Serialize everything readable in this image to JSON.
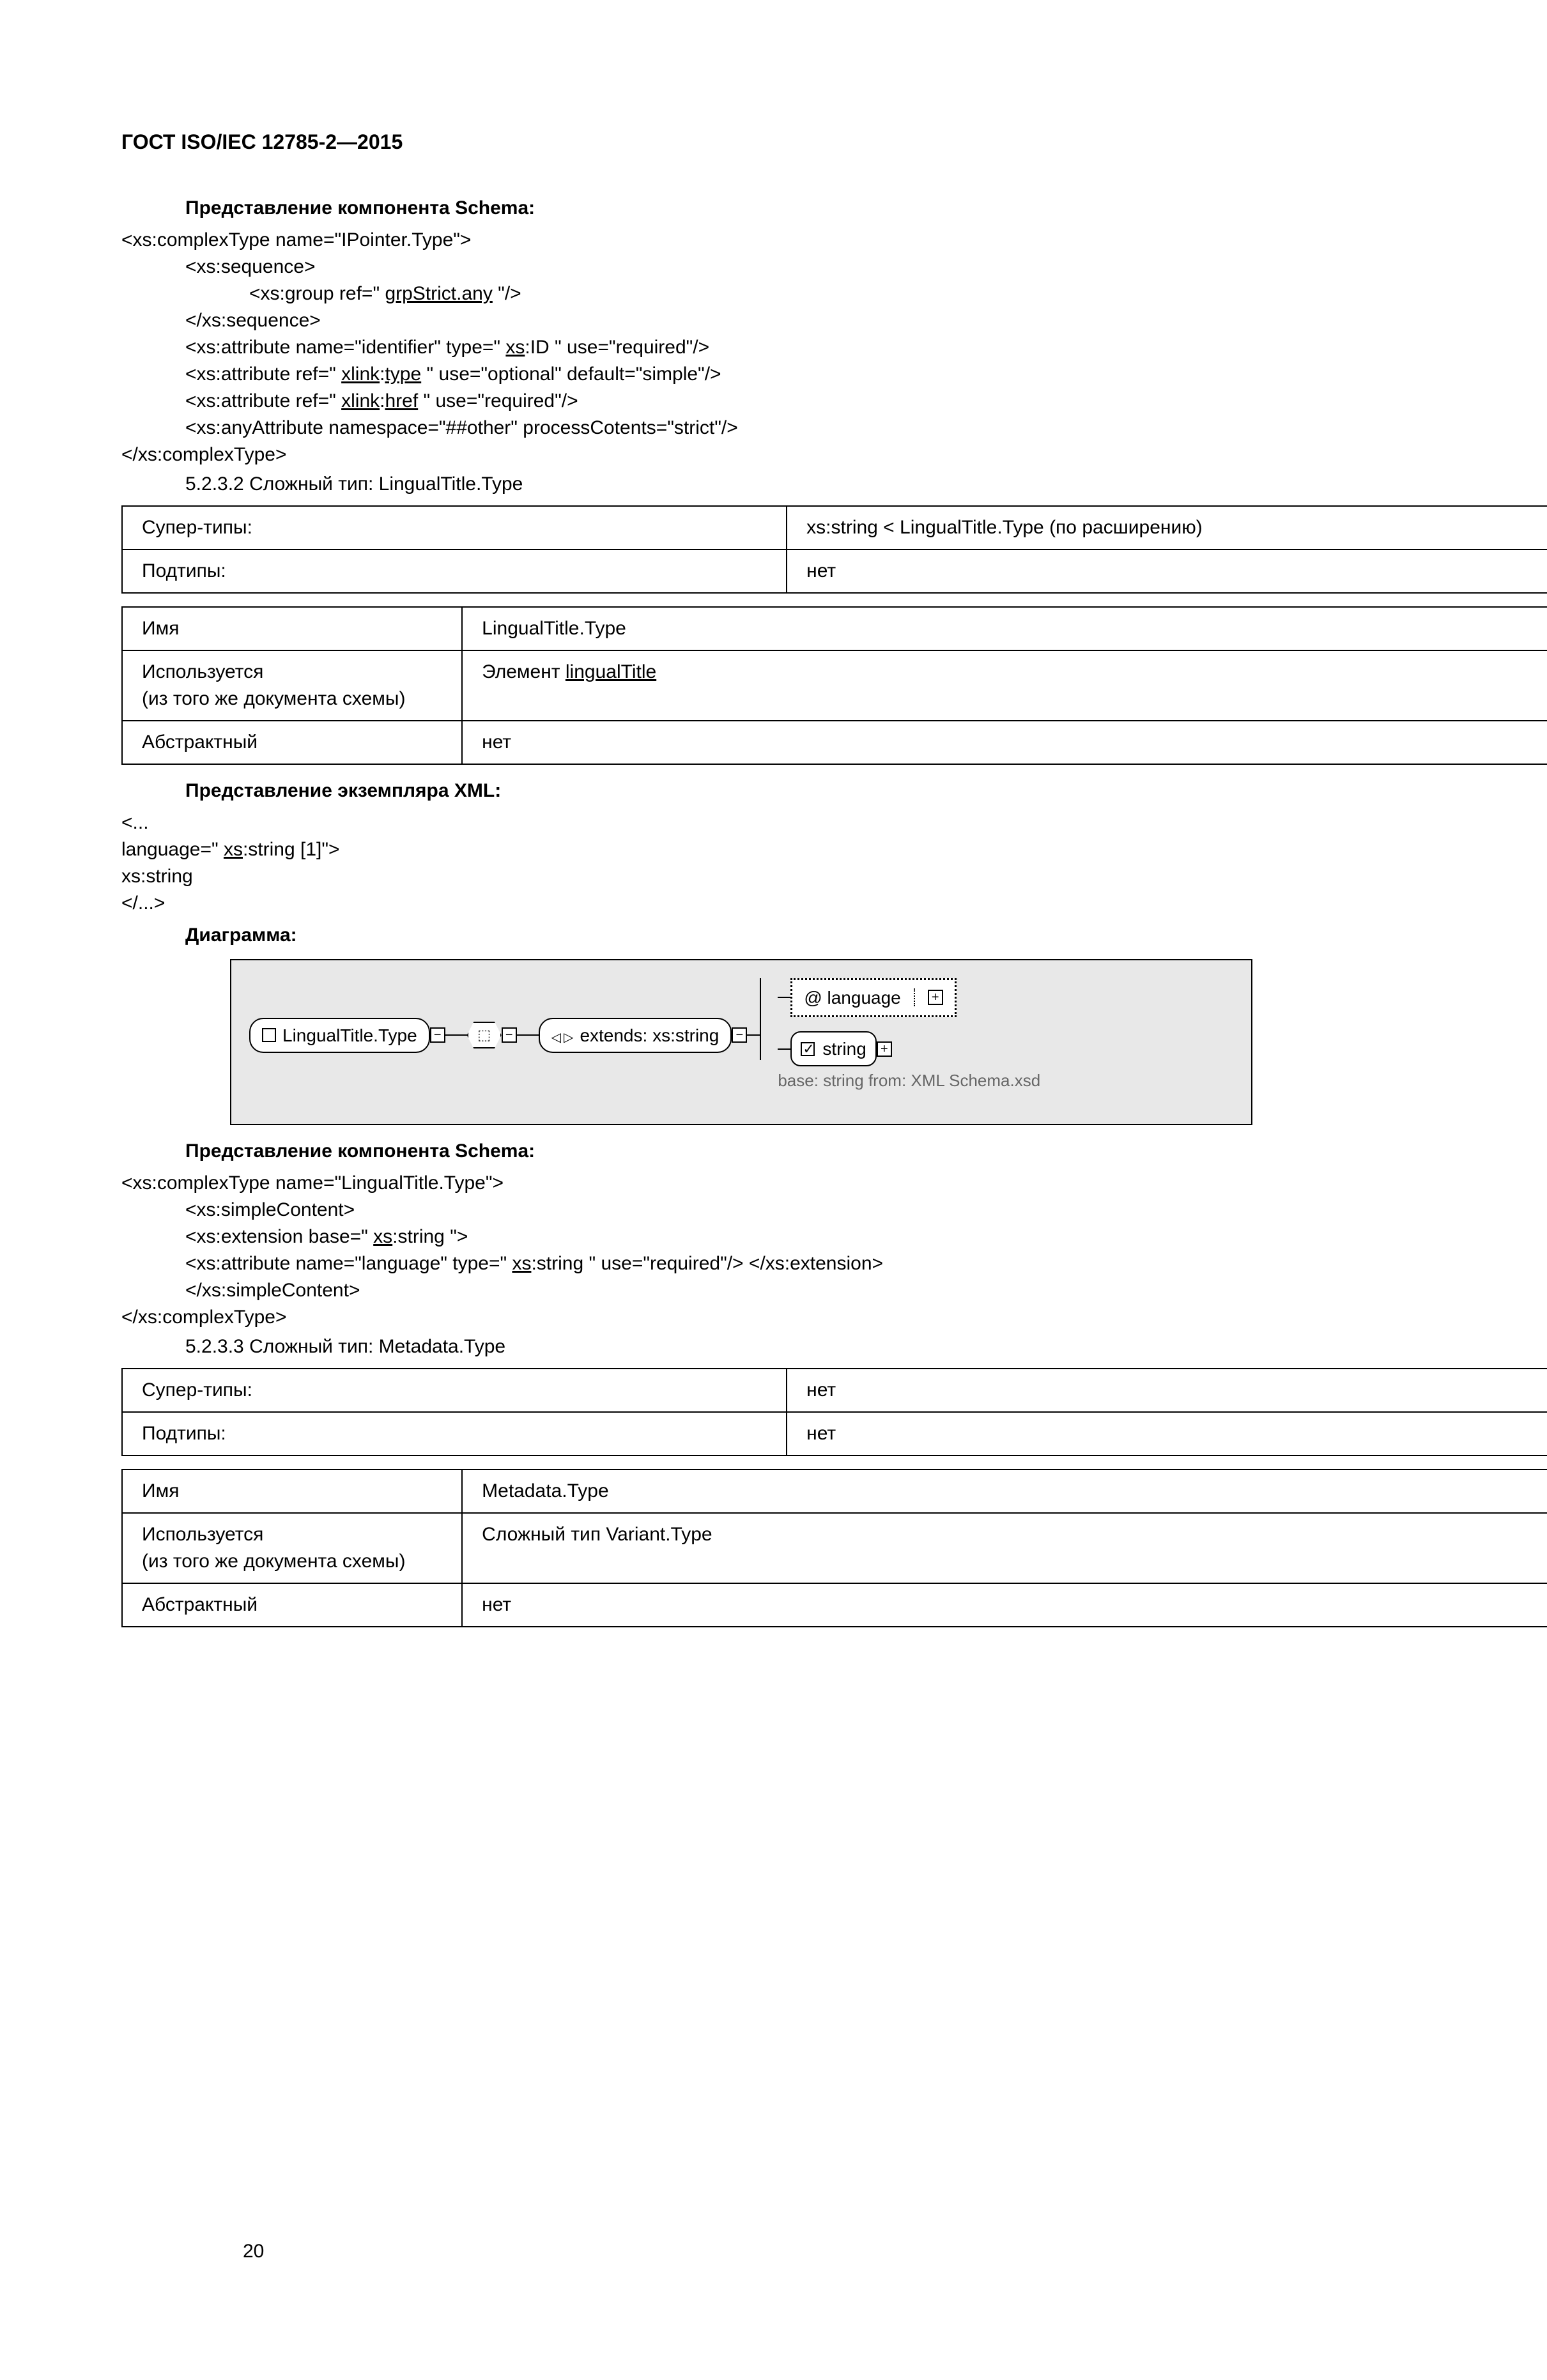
{
  "header": "ГОСТ ISO/IEC 12785-2—2015",
  "section1": {
    "title": "Представление компонента Schema:",
    "code": [
      {
        "indent": 0,
        "raw": "<xs:complexType name=\"IPointer.Type\">"
      },
      {
        "indent": 1,
        "raw": "<xs:sequence>"
      },
      {
        "indent": 2,
        "pre": "<xs:group ref=\" ",
        "u": "grpStrict.any",
        "post": " \"/>"
      },
      {
        "indent": 1,
        "raw": "</xs:sequence>"
      },
      {
        "indent": 1,
        "pre": "<xs:attribute name=\"identifier\" type=\" ",
        "u": "xs",
        "post": ":ID \" use=\"required\"/>"
      },
      {
        "indent": 1,
        "pre": "<xs:attribute ref=\" ",
        "u": "xlink",
        "mid": ":",
        "u2": "type",
        "post": " \" use=\"optional\" default=\"simple\"/>"
      },
      {
        "indent": 1,
        "pre": "<xs:attribute ref=\" ",
        "u": "xlink",
        "mid": ":",
        "u2": "href",
        "post": " \" use=\"required\"/>"
      },
      {
        "indent": 1,
        "raw": "<xs:anyAttribute namespace=\"##other\" processCotents=\"strict\"/>"
      },
      {
        "indent": 0,
        "raw": "</xs:complexType>"
      }
    ]
  },
  "sec5232": {
    "num": "5.2.3.2  Сложный тип: LingualTitle.Type",
    "table1": [
      [
        "Супер-типы:",
        "xs:string < LingualTitle.Type (по расширению)"
      ],
      [
        "Подтипы:",
        "нет"
      ]
    ],
    "table2": [
      [
        "Имя",
        "LingualTitle.Type"
      ],
      [
        "Используется\n(из того же документа схемы)",
        {
          "pre": "Элемент ",
          "u": "lingualTitle"
        }
      ],
      [
        "Абстрактный",
        "нет"
      ]
    ]
  },
  "xmlInst": {
    "title": "Представление экземпляра XML:",
    "lines": [
      {
        "raw": "<..."
      },
      {
        "pre": "language=\" ",
        "u": "xs",
        "post": ":string [1]\">"
      },
      {
        "raw": "xs:string"
      },
      {
        "raw": "</...>"
      }
    ]
  },
  "diagram": {
    "title": "Диаграмма:",
    "node1": "LingualTitle.Type",
    "node_extends_text": "extends:  xs:string",
    "attr_label": "@ language",
    "string_label": "string",
    "base_text": "base: string from: XML Schema.xsd"
  },
  "section2": {
    "title": "Представление компонента Schema:",
    "code": [
      {
        "indent": 0,
        "raw": "<xs:complexType name=\"LingualTitle.Type\">"
      },
      {
        "indent": 1,
        "raw": "<xs:simpleContent>"
      },
      {
        "indent": 1,
        "pre": "<xs:extension base=\" ",
        "u": "xs",
        "post": ":string \">"
      },
      {
        "indent": 1,
        "pre": "<xs:attribute name=\"language\" type=\" ",
        "u": "xs",
        "post": ":string \" use=\"required\"/> </xs:extension>"
      },
      {
        "indent": 1,
        "raw": "</xs:simpleContent>"
      },
      {
        "indent": 0,
        "raw": "</xs:complexType>"
      }
    ]
  },
  "sec5233": {
    "num": "5.2.3.3  Сложный тип: Metadata.Type",
    "table1": [
      [
        "Супер-типы:",
        "нет"
      ],
      [
        "Подтипы:",
        "нет"
      ]
    ],
    "table2": [
      [
        "Имя",
        "Metadata.Type"
      ],
      [
        "Используется\n(из того же документа схемы)",
        "Сложный тип Variant.Type"
      ],
      [
        "Абстрактный",
        "нет"
      ]
    ]
  },
  "pageNum": "20"
}
